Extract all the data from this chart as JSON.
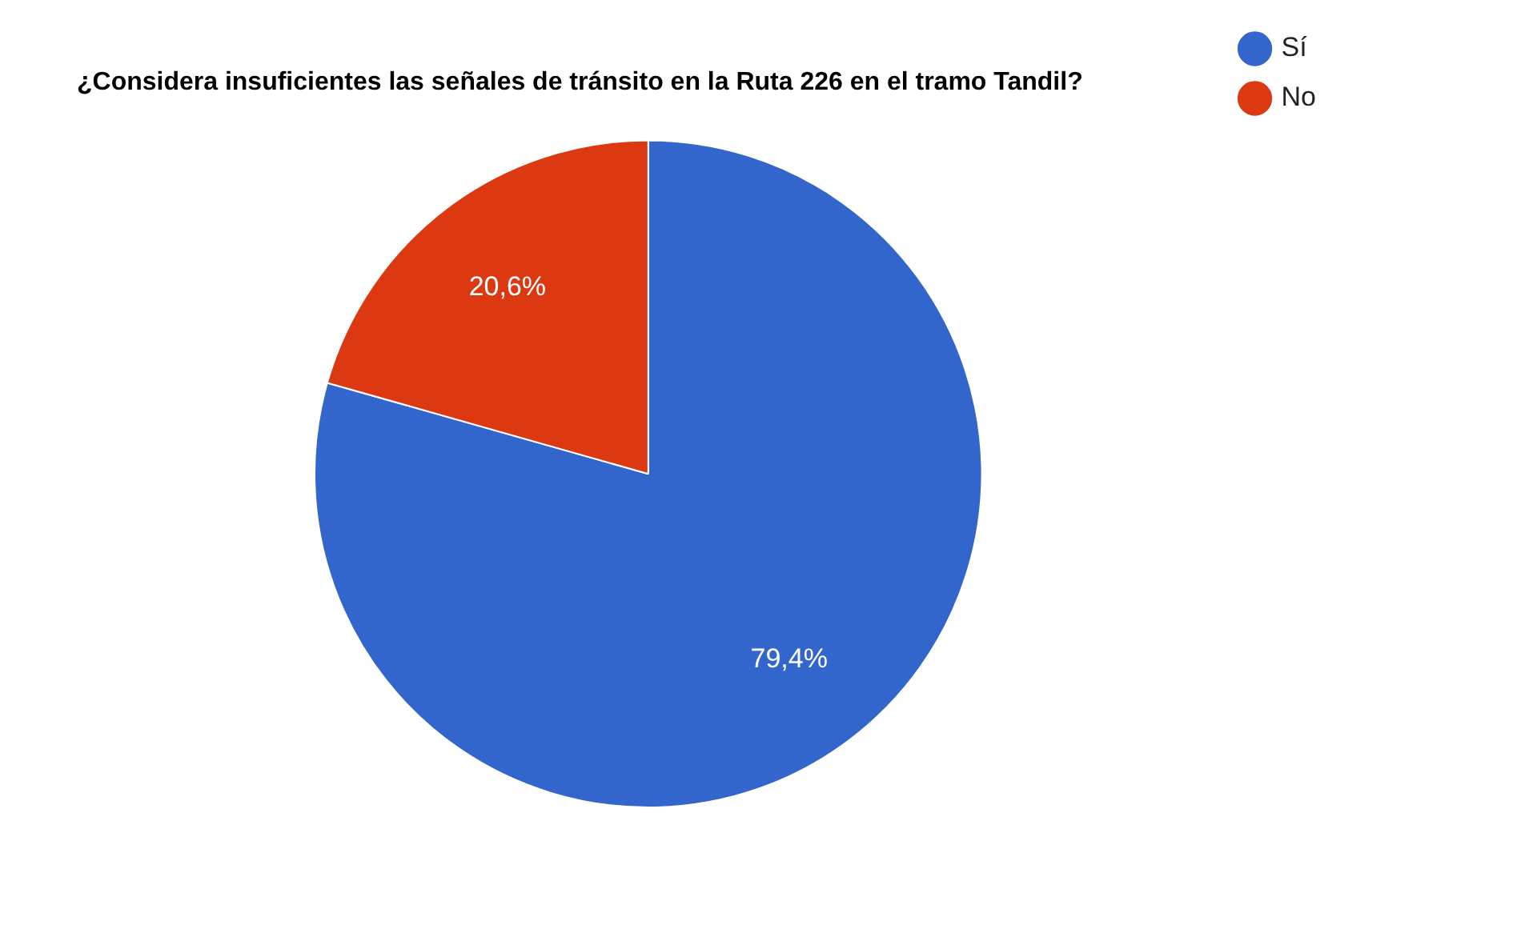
{
  "chart_data": {
    "type": "pie",
    "title": "¿Considera insuficientes las señales de tránsito en la Ruta 226 en el tramo Tandil?",
    "categories": [
      "Sí",
      "No"
    ],
    "values": [
      79.4,
      20.6
    ],
    "colors": [
      "#3366cc",
      "#dc3912"
    ],
    "value_labels": [
      "79,4%",
      "20,6%"
    ],
    "legend": "top right"
  }
}
